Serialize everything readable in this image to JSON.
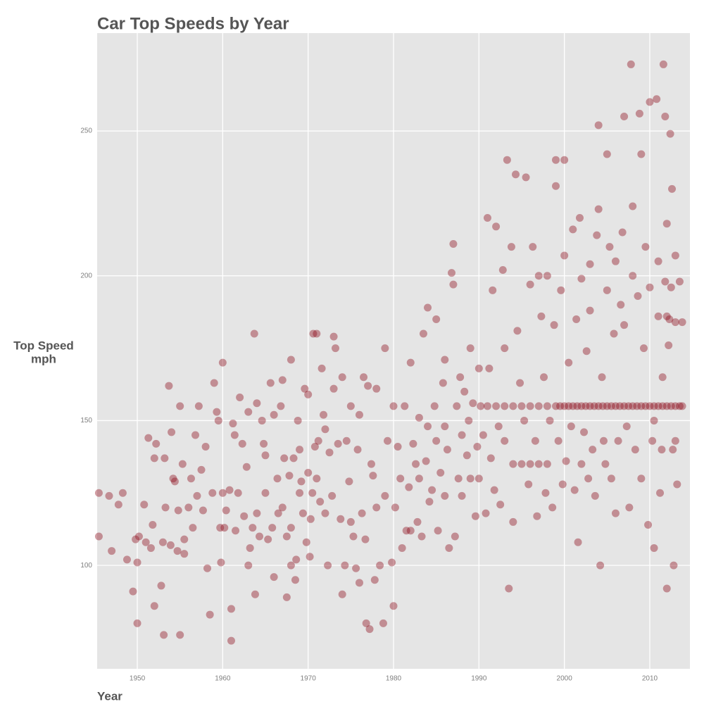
{
  "chart_data": {
    "type": "scatter",
    "title": "Car Top Speeds by Year",
    "x_label": "Year",
    "y_label": [
      "Top Speed",
      "mph"
    ],
    "color": "#8b0a1a",
    "grid": true,
    "xlim": [
      1945.3,
      2014.7
    ],
    "ylim": [
      64.3,
      283.8
    ],
    "xticks": [
      1950,
      1960,
      1970,
      1980,
      1990,
      2000,
      2010
    ],
    "yticks": [
      100,
      150,
      200,
      250
    ],
    "x": [
      1945.5,
      1945.5,
      1946.7,
      1947,
      1947.8,
      1948.3,
      1948.8,
      1949.5,
      1949.8,
      1950,
      1950,
      1950.2,
      1950.8,
      1951,
      1951.3,
      1951.6,
      1951.8,
      1952,
      1952,
      1952.2,
      1952.8,
      1953,
      1953.1,
      1953.2,
      1953.3,
      1953.7,
      1953.9,
      1954,
      1954.2,
      1954.4,
      1954.7,
      1954.8,
      1955,
      1955,
      1955.3,
      1955.5,
      1955.5,
      1956,
      1956.3,
      1956.5,
      1956.8,
      1957,
      1957.2,
      1957.5,
      1957.7,
      1958,
      1958.2,
      1958.5,
      1958.8,
      1959,
      1959.3,
      1959.5,
      1959.7,
      1959.8,
      1960,
      1960,
      1960.2,
      1960.4,
      1960.8,
      1961,
      1961,
      1961.2,
      1961.4,
      1961.5,
      1961.8,
      1962,
      1962.3,
      1962.5,
      1962.8,
      1963,
      1963,
      1963.2,
      1963.5,
      1963.7,
      1963.8,
      1964,
      1964,
      1964.3,
      1964.6,
      1964.8,
      1965,
      1965,
      1965.3,
      1965.6,
      1965.8,
      1966,
      1966,
      1966.4,
      1966.5,
      1966.8,
      1967,
      1967,
      1967.2,
      1967.5,
      1967.5,
      1967.8,
      1968,
      1968,
      1968,
      1968.3,
      1968.5,
      1968.6,
      1968.8,
      1969,
      1969,
      1969.2,
      1969.4,
      1969.6,
      1969.8,
      1970,
      1970,
      1970.2,
      1970.3,
      1970.5,
      1970.6,
      1970.8,
      1971,
      1971,
      1971.2,
      1971.4,
      1971.6,
      1971.8,
      1972,
      1972,
      1972.3,
      1972.5,
      1972.8,
      1973,
      1973,
      1973.2,
      1973.5,
      1973.8,
      1974,
      1974,
      1974.3,
      1974.5,
      1974.8,
      1975,
      1975,
      1975.3,
      1975.6,
      1975.8,
      1976,
      1976,
      1976.3,
      1976.5,
      1976.7,
      1976.8,
      1977,
      1977.2,
      1977.4,
      1977.6,
      1977.8,
      1978,
      1978,
      1978.4,
      1978.8,
      1979,
      1979,
      1979.3,
      1979.8,
      1980,
      1980,
      1980.2,
      1980.5,
      1980.8,
      1981,
      1981.3,
      1981.5,
      1981.8,
      1982,
      1982,
      1982.3,
      1982.6,
      1982.8,
      1983,
      1983,
      1983.3,
      1983.5,
      1983.8,
      1984,
      1984,
      1984.2,
      1984.5,
      1984.8,
      1985,
      1985,
      1985.2,
      1985.5,
      1985.8,
      1986,
      1986,
      1986,
      1986.3,
      1986.5,
      1986.8,
      1987,
      1987,
      1987.2,
      1987.4,
      1987.6,
      1987.8,
      1988,
      1988,
      1988.3,
      1988.6,
      1988.8,
      1989,
      1989,
      1989.3,
      1989.6,
      1989.8,
      1990,
      1990,
      1990.2,
      1990.5,
      1990.8,
      1991,
      1991,
      1991.2,
      1991.4,
      1991.6,
      1991.8,
      1992,
      1992,
      1992.3,
      1992.5,
      1992.8,
      1993,
      1993,
      1993,
      1993.3,
      1993.5,
      1993.8,
      1994,
      1994,
      1994,
      1994.3,
      1994.5,
      1994.8,
      1995,
      1995,
      1995.3,
      1995.5,
      1995.8,
      1996,
      1996,
      1996,
      1996.3,
      1996.6,
      1996.8,
      1997,
      1997,
      1997,
      1997.3,
      1997.6,
      1997.8,
      1998,
      1998,
      1998,
      1998.3,
      1998.6,
      1998.8,
      1999,
      1999,
      1999,
      1999.3,
      1999.6,
      1999.8,
      2000,
      2000,
      2000,
      2000.2,
      2000.5,
      2000.8,
      2001,
      2001,
      2001.2,
      2001.4,
      2001.6,
      2001.8,
      2002,
      2002,
      2002,
      2002.3,
      2002.6,
      2002.8,
      2003,
      2003,
      2003,
      2003.3,
      2003.6,
      2003.8,
      2004,
      2004,
      2004,
      2004.2,
      2004.4,
      2004.6,
      2004.8,
      2005,
      2005,
      2005,
      2005.3,
      2005.5,
      2005.8,
      2006,
      2006,
      2006,
      2006.3,
      2006.6,
      2006.8,
      2007,
      2007,
      2007,
      2007.3,
      2007.6,
      2007.8,
      2008,
      2008,
      2008,
      2008.3,
      2008.6,
      2008.8,
      2009,
      2009,
      2009,
      2009.3,
      2009.5,
      2009.8,
      2010,
      2010,
      2010,
      2010.3,
      2010.5,
      2010.8,
      2011,
      2011,
      2011,
      2011.2,
      2011.4,
      2011.6,
      2011.8,
      2012,
      2012,
      2012,
      2012.2,
      2012.4,
      2012.6,
      2012.8,
      2013,
      2013,
      2013,
      2013,
      2013.2,
      2012.5,
      2011.5,
      2010.5,
      1999.5,
      2000.5,
      2001.5,
      2002.5,
      2003.5,
      2004.5,
      2005.5,
      2006.5,
      2007.5,
      2008.5,
      2009.5,
      2010.5,
      2011.5,
      2012.5,
      2013.5,
      2013.8,
      2013.8,
      2012,
      2011.8,
      2012.3,
      2013.5,
      2012.7
    ],
    "values": [
      125,
      110,
      124,
      105,
      121,
      125,
      102,
      91,
      109,
      101,
      80,
      110,
      121,
      108,
      144,
      106,
      114,
      137,
      86,
      142,
      93,
      108,
      76,
      137,
      120,
      162,
      107,
      146,
      130,
      129,
      105,
      119,
      155,
      76,
      135,
      104,
      109,
      120,
      130,
      113,
      145,
      124,
      155,
      133,
      119,
      141,
      99,
      83,
      125,
      163,
      153,
      150,
      113,
      101,
      170,
      125,
      113,
      119,
      126,
      85,
      74,
      149,
      145,
      112,
      125,
      158,
      142,
      117,
      134,
      153,
      100,
      106,
      113,
      180,
      90,
      156,
      118,
      110,
      150,
      142,
      138,
      125,
      109,
      163,
      113,
      96,
      152,
      130,
      118,
      155,
      120,
      164,
      137,
      89,
      110,
      131,
      171,
      100,
      113,
      137,
      95,
      102,
      150,
      140,
      125,
      129,
      118,
      161,
      108,
      159,
      132,
      103,
      116,
      125,
      180,
      141,
      180,
      130,
      143,
      122,
      168,
      152,
      118,
      147,
      100,
      139,
      124,
      179,
      161,
      175,
      142,
      116,
      90,
      165,
      100,
      143,
      129,
      115,
      155,
      110,
      99,
      140,
      94,
      152,
      118,
      165,
      109,
      80,
      162,
      78,
      135,
      131,
      95,
      161,
      120,
      100,
      80,
      175,
      124,
      143,
      101,
      86,
      155,
      120,
      141,
      130,
      106,
      155,
      112,
      127,
      170,
      112,
      142,
      135,
      115,
      151,
      130,
      110,
      180,
      136,
      189,
      148,
      122,
      126,
      155,
      143,
      185,
      112,
      132,
      163,
      171,
      124,
      148,
      140,
      106,
      201,
      197,
      211,
      110,
      155,
      130,
      165,
      145,
      124,
      160,
      138,
      150,
      175,
      130,
      156,
      117,
      141,
      168,
      130,
      155,
      145,
      118,
      220,
      155,
      168,
      137,
      195,
      126,
      155,
      217,
      148,
      121,
      202,
      175,
      143,
      155,
      240,
      92,
      210,
      135,
      155,
      115,
      235,
      181,
      163,
      135,
      155,
      150,
      234,
      128,
      197,
      155,
      135,
      210,
      143,
      117,
      200,
      155,
      135,
      186,
      165,
      125,
      200,
      155,
      135,
      150,
      120,
      183,
      240,
      155,
      231,
      143,
      195,
      128,
      240,
      155,
      207,
      136,
      170,
      148,
      155,
      216,
      126,
      185,
      108,
      220,
      155,
      199,
      135,
      146,
      174,
      130,
      155,
      204,
      188,
      140,
      124,
      214,
      155,
      252,
      223,
      100,
      165,
      143,
      135,
      155,
      242,
      195,
      210,
      130,
      180,
      155,
      118,
      205,
      143,
      190,
      215,
      155,
      255,
      183,
      148,
      120,
      273,
      155,
      224,
      200,
      140,
      193,
      256,
      155,
      242,
      130,
      175,
      210,
      114,
      155,
      260,
      196,
      143,
      106,
      261,
      155,
      186,
      205,
      125,
      140,
      273,
      255,
      155,
      218,
      92,
      176,
      249,
      230,
      100,
      155,
      184,
      143,
      207,
      128,
      196,
      165,
      150,
      155,
      155,
      155,
      155,
      155,
      155,
      155,
      155,
      155,
      155,
      155,
      155,
      155,
      155,
      155,
      155,
      184,
      186,
      198,
      185,
      198,
      140
    ]
  }
}
